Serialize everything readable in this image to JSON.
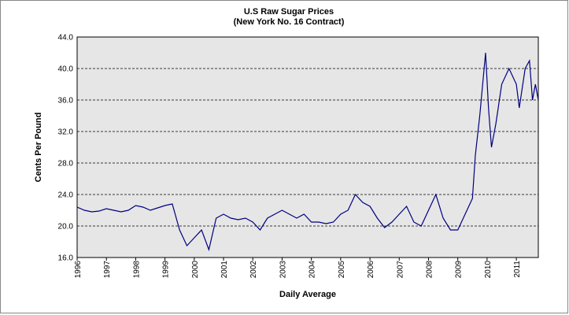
{
  "chart_data": {
    "type": "line",
    "title": "U.S Raw Sugar Prices",
    "subtitle": "(New York No. 16 Contract)",
    "xlabel": "Daily Average",
    "ylabel": "Cents Per Pound",
    "x": [
      1996,
      1996.25,
      1996.5,
      1996.75,
      1997,
      1997.25,
      1997.5,
      1997.75,
      1998,
      1998.25,
      1998.5,
      1998.75,
      1999,
      1999.25,
      1999.5,
      1999.75,
      2000,
      2000.25,
      2000.5,
      2000.75,
      2001,
      2001.25,
      2001.5,
      2001.75,
      2002,
      2002.25,
      2002.5,
      2002.75,
      2003,
      2003.25,
      2003.5,
      2003.75,
      2004,
      2004.25,
      2004.5,
      2004.75,
      2005,
      2005.25,
      2005.5,
      2005.75,
      2006,
      2006.25,
      2006.5,
      2006.75,
      2007,
      2007.25,
      2007.5,
      2007.75,
      2008,
      2008.25,
      2008.5,
      2008.75,
      2009,
      2009.25,
      2009.5,
      2009.6,
      2009.75,
      2009.85,
      2009.95,
      2010.05,
      2010.15,
      2010.3,
      2010.5,
      2010.75,
      2011,
      2011.1,
      2011.3,
      2011.45,
      2011.55,
      2011.65,
      2011.75
    ],
    "series": [
      {
        "name": "Raw Sugar",
        "color": "#000080",
        "values": [
          22.4,
          22.0,
          21.8,
          21.9,
          22.2,
          22.0,
          21.8,
          22.0,
          22.6,
          22.4,
          22.0,
          22.3,
          22.6,
          22.8,
          19.5,
          17.5,
          18.5,
          19.5,
          17.0,
          21.0,
          21.5,
          21.0,
          20.8,
          21.0,
          20.5,
          19.5,
          21.0,
          21.5,
          22.0,
          21.5,
          21.0,
          21.5,
          20.5,
          20.5,
          20.3,
          20.5,
          21.5,
          22.0,
          24.0,
          23.0,
          22.5,
          21.0,
          19.8,
          20.5,
          21.5,
          22.5,
          20.5,
          20.0,
          22.0,
          24.0,
          21.0,
          19.5,
          19.5,
          21.5,
          23.5,
          29.0,
          34.0,
          38.0,
          42.0,
          35.0,
          30.0,
          33.0,
          38.0,
          40.0,
          38.0,
          35.0,
          40.0,
          41.0,
          36.0,
          38.0,
          36.0
        ]
      }
    ],
    "xlim": [
      1996,
      2011.75
    ],
    "xticks": [
      1996,
      1997,
      1998,
      1999,
      2000,
      2001,
      2002,
      2003,
      2004,
      2005,
      2006,
      2007,
      2008,
      2009,
      2010,
      2011
    ],
    "ylim": [
      16,
      44
    ],
    "yticks": [
      {
        "value": 16,
        "label": "16.0"
      },
      {
        "value": 20,
        "label": "20.0"
      },
      {
        "value": 24,
        "label": "24.0"
      },
      {
        "value": 28,
        "label": "28.0"
      },
      {
        "value": 32,
        "label": "32.0"
      },
      {
        "value": 36,
        "label": "36.0"
      },
      {
        "value": 40,
        "label": "40.0"
      },
      {
        "value": 44,
        "label": "44.0"
      }
    ],
    "grid": true
  }
}
